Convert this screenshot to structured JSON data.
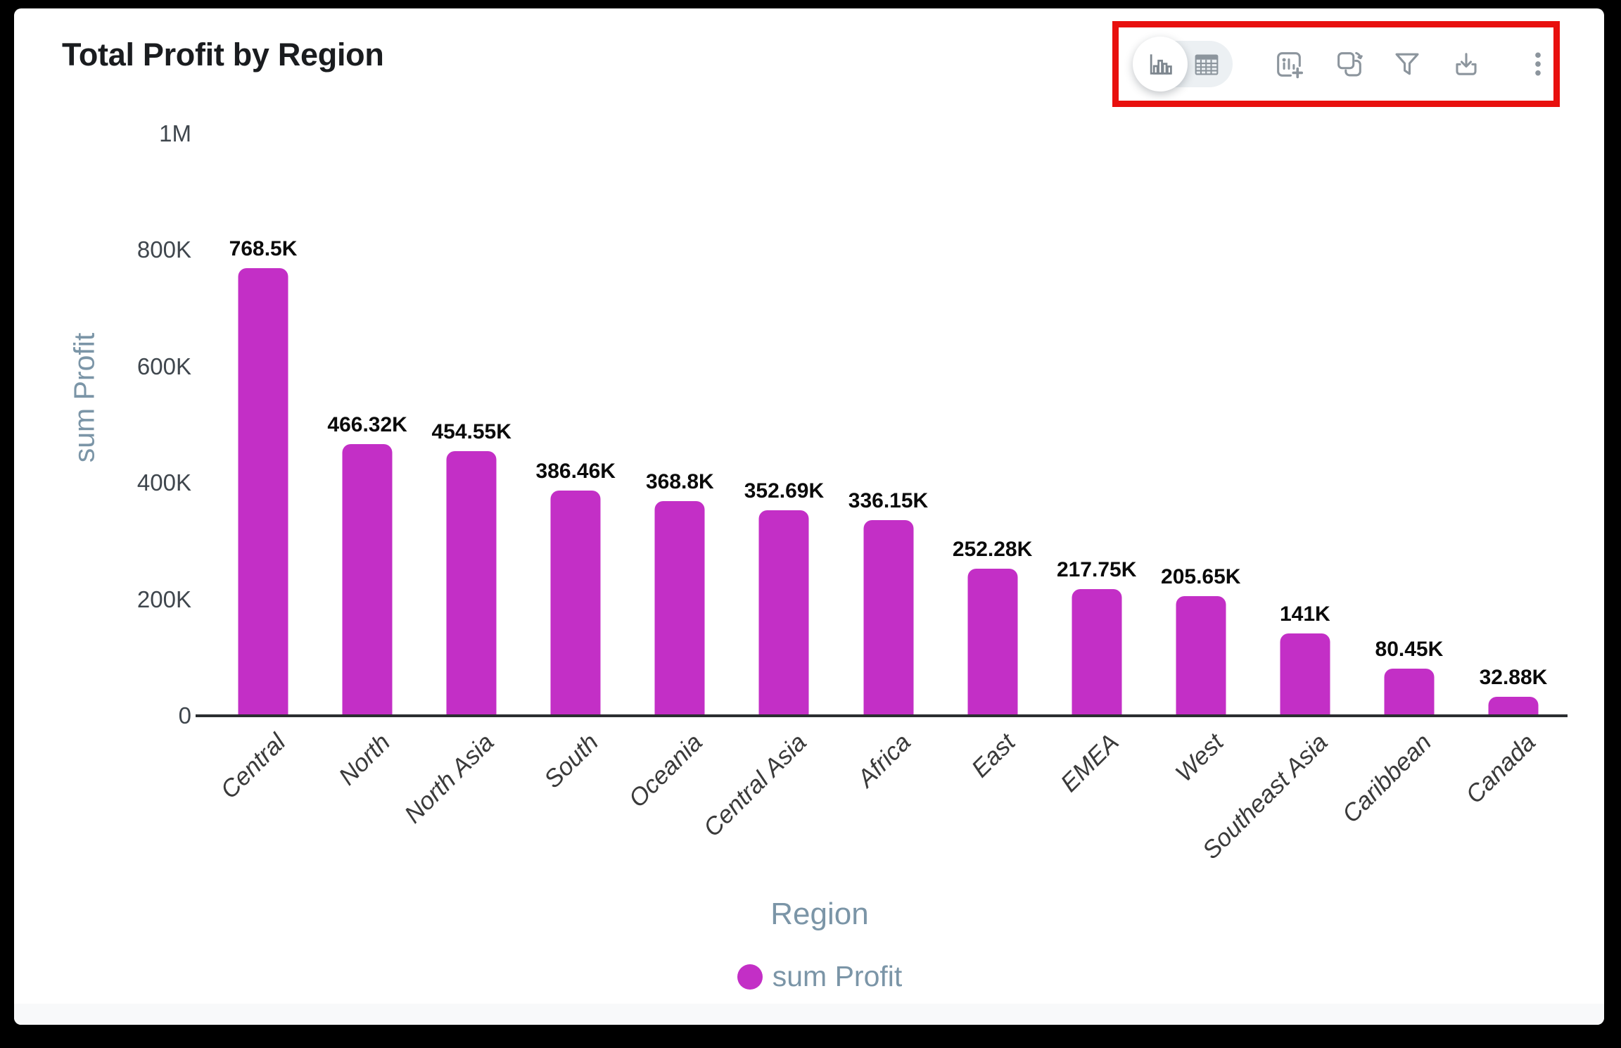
{
  "header": {
    "title": "Total Profit by Region"
  },
  "toolbar": {
    "view_toggle": {
      "selected": "chart",
      "options": [
        "chart",
        "table"
      ]
    },
    "icons": [
      "bar-chart-view-icon",
      "table-view-icon",
      "add-chart-icon",
      "swap-chart-icon",
      "filter-icon",
      "download-icon",
      "more-options-icon"
    ]
  },
  "colors": {
    "annotation": "#e8100e",
    "icon": "#8c959d",
    "axis_title": "#7b95a7",
    "tick_label": "#3f464d"
  },
  "chart_data": {
    "type": "bar",
    "title": "Total Profit by Region",
    "categories": [
      "Central",
      "North",
      "North Asia",
      "South",
      "Oceania",
      "Central Asia",
      "Africa",
      "East",
      "EMEA",
      "West",
      "Southeast Asia",
      "Caribbean",
      "Canada"
    ],
    "values": [
      768500,
      466320,
      454550,
      386460,
      368800,
      352690,
      336150,
      252280,
      217750,
      205650,
      141000,
      80450,
      32880
    ],
    "value_labels": [
      "768.5K",
      "466.32K",
      "454.55K",
      "386.46K",
      "368.8K",
      "352.69K",
      "336.15K",
      "252.28K",
      "217.75K",
      "205.65K",
      "141K",
      "80.45K",
      "32.88K"
    ],
    "xlabel": "Region",
    "ylabel": "sum Profit",
    "ylim": [
      0,
      1000000
    ],
    "yticks": [
      {
        "label": "1M",
        "value": 1000000
      },
      {
        "label": "800K",
        "value": 800000
      },
      {
        "label": "600K",
        "value": 600000
      },
      {
        "label": "400K",
        "value": 400000
      },
      {
        "label": "200K",
        "value": 200000
      },
      {
        "label": "0",
        "value": 0
      }
    ],
    "bar_color": "#c32fc6",
    "grid": false,
    "legend_position": "bottom",
    "legend": [
      {
        "label": "sum Profit",
        "color": "#c32fc6"
      }
    ]
  }
}
